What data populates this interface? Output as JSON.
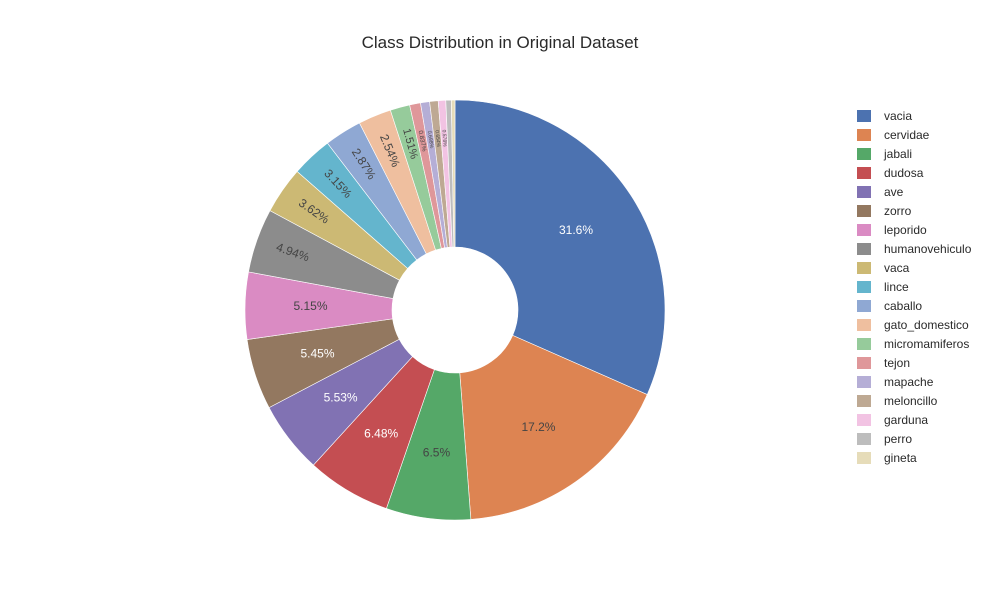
{
  "chart_data": {
    "type": "pie",
    "title": "Class Distribution in Original Dataset",
    "hole": 0.3,
    "direction": "clockwise",
    "legend_position": "right",
    "labels": [
      "vacia",
      "cervidae",
      "jabali",
      "dudosa",
      "ave",
      "zorro",
      "leporido",
      "humanovehiculo",
      "vaca",
      "lince",
      "caballo",
      "gato_domestico",
      "micromamiferos",
      "tejon",
      "mapache",
      "meloncillo",
      "garduna",
      "perro",
      "gineta"
    ],
    "values": [
      31.6,
      17.2,
      6.5,
      6.48,
      5.53,
      5.45,
      5.15,
      4.94,
      3.62,
      3.15,
      2.87,
      2.54,
      1.51,
      0.837,
      0.698,
      0.654,
      0.578,
      0.42,
      0.28
    ],
    "display_labels": [
      "31.6%",
      "17.2%",
      "6.5%",
      "6.48%",
      "5.53%",
      "5.45%",
      "5.15%",
      "4.94%",
      "3.62%",
      "3.15%",
      "2.87%",
      "2.54%",
      "1.51%",
      "0.837%",
      "0.698%",
      "0.654%",
      "0.578%",
      "",
      ""
    ],
    "colors": [
      "#4c72b0",
      "#dd8452",
      "#55a868",
      "#c44e52",
      "#8172b3",
      "#937860",
      "#da8bc3",
      "#8c8c8c",
      "#ccb974",
      "#64b5cd",
      "#8fa8d3",
      "#efbf9f",
      "#96cb9b",
      "#df979a",
      "#b5aed6",
      "#bea993",
      "#f2c3e3",
      "#bdbdbd",
      "#e6dcb9"
    ],
    "label_colors": [
      "#ffffff",
      "#444444",
      "#444444",
      "#ffffff",
      "#ffffff",
      "#ffffff",
      "#444444",
      "#444444",
      "#444444",
      "#444444",
      "#444444",
      "#444444",
      "#444444",
      "#444444",
      "#444444",
      "#444444",
      "#444444",
      "#444444",
      "#444444"
    ]
  }
}
